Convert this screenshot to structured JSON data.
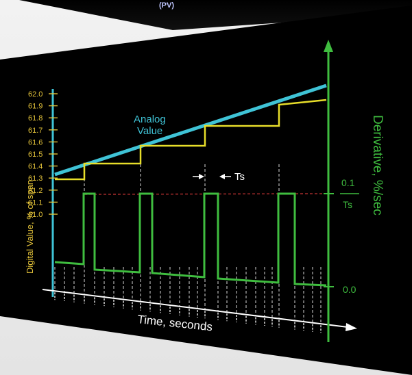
{
  "top_panel": {
    "pv_label": "(PV)"
  },
  "chart_data": {
    "type": "line",
    "left_axis": {
      "label": "Digital Value, % of span",
      "ticks": [
        "62.0",
        "61.9",
        "61.8",
        "61.7",
        "61.6",
        "61.5",
        "61.4",
        "61.3",
        "61.2",
        "61.1",
        "61.0"
      ]
    },
    "right_axis": {
      "label": "Derivative, %/sec",
      "tick_top": "0.1",
      "tick_top_denominator": "Ts",
      "tick_bottom": "0.0"
    },
    "x_axis": {
      "label": "Time, seconds"
    },
    "annotations": {
      "analog_line1": "Analog",
      "analog_line2": "Value",
      "sample_period": "Ts"
    },
    "series": [
      {
        "name": "Analog Value",
        "start": 61.42,
        "end": 62.0
      },
      {
        "name": "Digital Value",
        "steps": [
          61.4,
          61.5,
          61.64,
          61.78,
          61.94
        ]
      },
      {
        "name": "Derivative",
        "low": 0.0,
        "high": 0.1
      }
    ],
    "colors": {
      "analog": "#3fc3d6",
      "digital": "#e8de2a",
      "derivative": "#3fbd3f",
      "reference": "#b83030"
    }
  }
}
